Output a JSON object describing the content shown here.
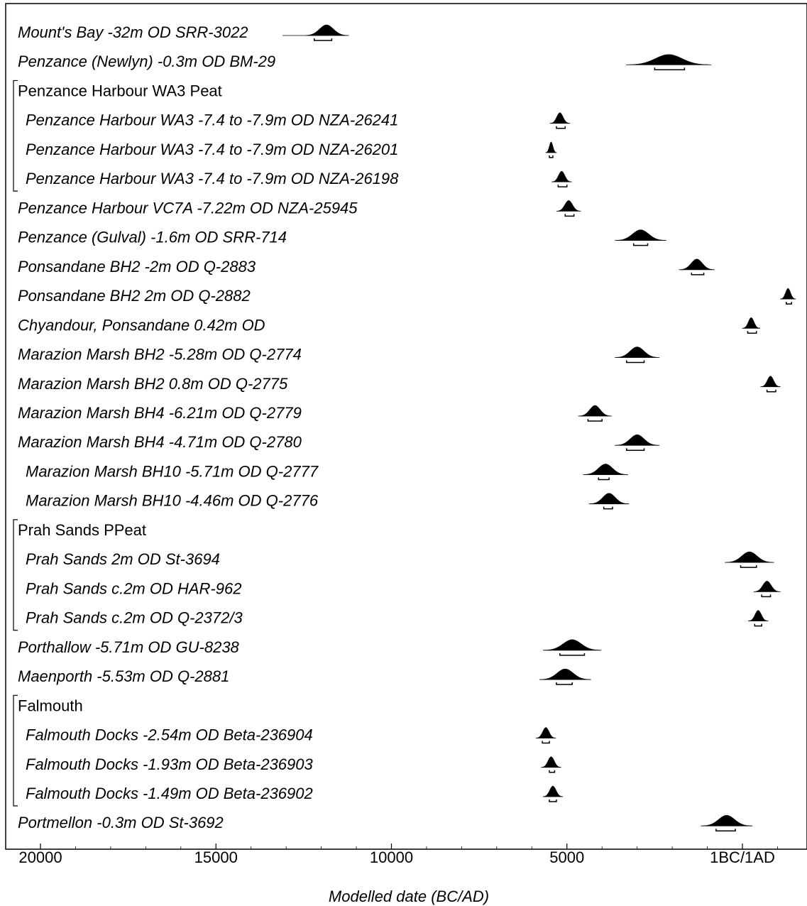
{
  "chart_data": {
    "type": "oxcal-multiplot",
    "xlabel": "Modelled date (BC/AD)",
    "xlim": [
      -21000,
      2800
    ],
    "x_ticks": [
      {
        "value": -20000,
        "label": "20000"
      },
      {
        "value": -15000,
        "label": "15000"
      },
      {
        "value": -10000,
        "label": "10000"
      },
      {
        "value": -5000,
        "label": "5000"
      },
      {
        "value": 0,
        "label": "1BC/1AD"
      }
    ],
    "rows": [
      {
        "kind": "date",
        "label": "Mount's Bay -32m OD SRR-3022",
        "indent": 0,
        "center": -11850,
        "spread": 200,
        "range": [
          -12200,
          -11700
        ],
        "leader": true
      },
      {
        "kind": "date",
        "label": "Penzance (Newlyn) -0.3m OD BM-29",
        "indent": 0,
        "center": -2100,
        "spread": 380,
        "range": [
          -2500,
          -1650
        ]
      },
      {
        "kind": "group",
        "label": "Penzance Harbour WA3 Peat",
        "bracket_span": 3
      },
      {
        "kind": "date",
        "label": "Penzance Harbour WA3 -7.4 to -7.9m OD NZA-26241",
        "indent": 1,
        "center": -5200,
        "spread": 90,
        "range": [
          -5300,
          -5050
        ]
      },
      {
        "kind": "date",
        "label": "Penzance Harbour WA3 -7.4 to -7.9m OD NZA-26201",
        "indent": 1,
        "center": -5450,
        "spread": 50,
        "range": [
          -5500,
          -5400
        ]
      },
      {
        "kind": "date",
        "label": "Penzance Harbour WA3 -7.4 to -7.9m OD NZA-26198",
        "indent": 1,
        "center": -5150,
        "spread": 90,
        "range": [
          -5250,
          -5000
        ]
      },
      {
        "kind": "date",
        "label": "Penzance Harbour VC7A -7.22m OD NZA-25945",
        "indent": 0,
        "center": -4950,
        "spread": 110,
        "range": [
          -5050,
          -4800
        ]
      },
      {
        "kind": "date",
        "label": "Penzance (Gulval) -1.6m OD SRR-714",
        "indent": 0,
        "center": -2900,
        "spread": 230,
        "range": [
          -3100,
          -2700
        ]
      },
      {
        "kind": "date",
        "label": "Ponsandane BH2 -2m OD Q-2883",
        "indent": 0,
        "center": -1300,
        "spread": 160,
        "range": [
          -1450,
          -1100
        ]
      },
      {
        "kind": "date",
        "label": "Ponsandane BH2 2m OD Q-2882",
        "indent": 0,
        "center": 1300,
        "spread": 70,
        "range": [
          1250,
          1400
        ]
      },
      {
        "kind": "date",
        "label": "Chyandour, Ponsandane 0.42m OD",
        "indent": 0,
        "center": 250,
        "spread": 80,
        "range": [
          150,
          400
        ]
      },
      {
        "kind": "date",
        "label": "Marazion Marsh BH2 -5.28m OD Q-2774",
        "indent": 0,
        "center": -3000,
        "spread": 200,
        "range": [
          -3300,
          -2800
        ]
      },
      {
        "kind": "date",
        "label": "Marazion Marsh BH2 0.8m OD Q-2775",
        "indent": 0,
        "center": 800,
        "spread": 90,
        "range": [
          700,
          950
        ]
      },
      {
        "kind": "date",
        "label": "Marazion Marsh BH4 -6.21m OD Q-2779",
        "indent": 0,
        "center": -4200,
        "spread": 150,
        "range": [
          -4400,
          -4000
        ]
      },
      {
        "kind": "date",
        "label": "Marazion Marsh BH4 -4.71m OD Q-2780",
        "indent": 0,
        "center": -3000,
        "spread": 200,
        "range": [
          -3300,
          -2800
        ]
      },
      {
        "kind": "date",
        "label": "Marazion Marsh BH10 -5.71m OD Q-2777",
        "indent": 1,
        "center": -3900,
        "spread": 200,
        "range": [
          -4100,
          -3800
        ]
      },
      {
        "kind": "date",
        "label": "Marazion Marsh BH10 -4.46m OD Q-2776",
        "indent": 1,
        "center": -3800,
        "spread": 180,
        "range": [
          -3950,
          -3700
        ]
      },
      {
        "kind": "group",
        "label": "Prah Sands PPeat",
        "bracket_span": 3
      },
      {
        "kind": "date",
        "label": "Prah Sands 2m OD St-3694",
        "indent": 1,
        "center": 200,
        "spread": 220,
        "range": [
          -50,
          400
        ]
      },
      {
        "kind": "date",
        "label": "Prah Sands c.2m OD HAR-962",
        "indent": 1,
        "center": 700,
        "spread": 120,
        "range": [
          550,
          800
        ]
      },
      {
        "kind": "date",
        "label": "Prah Sands c.2m OD Q-2372/3",
        "indent": 1,
        "center": 450,
        "spread": 90,
        "range": [
          350,
          550
        ]
      },
      {
        "kind": "date",
        "label": "Porthallow -5.71m OD GU-8238",
        "indent": 0,
        "center": -4850,
        "spread": 260,
        "range": [
          -5200,
          -4500
        ]
      },
      {
        "kind": "date",
        "label": "Maenporth -5.53m OD Q-2881",
        "indent": 0,
        "center": -5050,
        "spread": 230,
        "range": [
          -5300,
          -4850
        ]
      },
      {
        "kind": "group",
        "label": "Falmouth",
        "bracket_span": 3
      },
      {
        "kind": "date",
        "label": "Falmouth Docks -2.54m OD Beta-236904",
        "indent": 1,
        "center": -5600,
        "spread": 90,
        "range": [
          -5700,
          -5500
        ]
      },
      {
        "kind": "date",
        "label": "Falmouth Docks -1.93m OD Beta-236903",
        "indent": 1,
        "center": -5450,
        "spread": 90,
        "range": [
          -5500,
          -5350
        ]
      },
      {
        "kind": "date",
        "label": "Falmouth Docks -1.49m OD Beta-236902",
        "indent": 1,
        "center": -5400,
        "spread": 90,
        "range": [
          -5500,
          -5300
        ]
      },
      {
        "kind": "date",
        "label": "Portmellon -0.3m OD St-3692",
        "indent": 0,
        "center": -450,
        "spread": 230,
        "range": [
          -750,
          -200
        ]
      }
    ]
  }
}
